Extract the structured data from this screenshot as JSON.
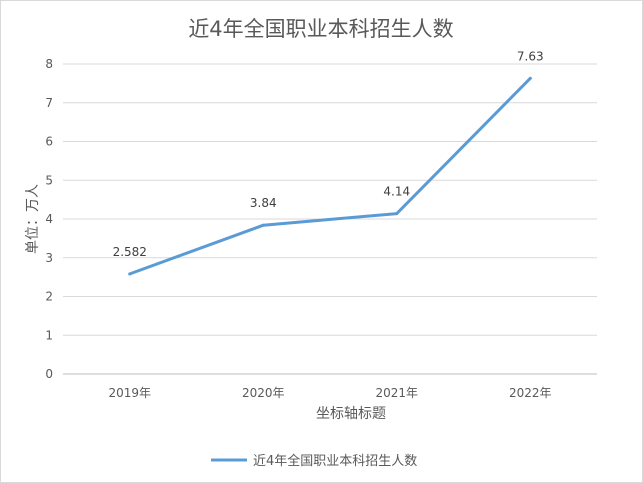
{
  "chart_data": {
    "type": "line",
    "title": "近4年全国职业本科招生人数",
    "xlabel": "坐标轴标题",
    "ylabel": "单位：万人",
    "categories": [
      "2019年",
      "2020年",
      "2021年",
      "2022年"
    ],
    "series": [
      {
        "name": "近4年全国职业本科招生人数",
        "values": [
          2.582,
          3.84,
          4.14,
          7.63
        ],
        "labels": [
          "2.582",
          "3.84",
          "4.14",
          "7.63"
        ],
        "color": "#5b9bd5"
      }
    ],
    "ylim": [
      0,
      8
    ],
    "yticks": [
      "0",
      "1",
      "2",
      "3",
      "4",
      "5",
      "6",
      "7",
      "8"
    ],
    "grid": true,
    "legend_position": "bottom"
  }
}
